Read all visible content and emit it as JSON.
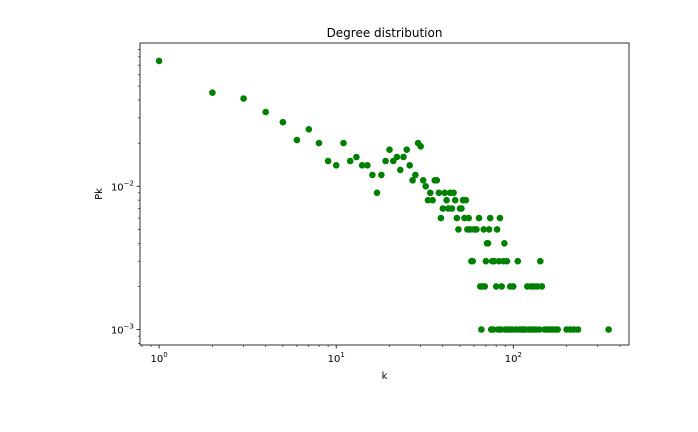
{
  "chart_data": {
    "type": "scatter",
    "title": "Degree distribution",
    "xlabel": "k",
    "ylabel": "Pk",
    "xscale": "log",
    "yscale": "log",
    "xlim": [
      0.78,
      450
    ],
    "ylim": [
      0.00078,
      0.1
    ],
    "grid": false,
    "marker_color": "#008000",
    "x_ticks": [
      {
        "value": 1,
        "base": "10",
        "exp": "0"
      },
      {
        "value": 10,
        "base": "10",
        "exp": "1"
      },
      {
        "value": 100,
        "base": "10",
        "exp": "2"
      }
    ],
    "y_ticks": [
      {
        "value": 0.001,
        "base": "10",
        "exp": "−3"
      },
      {
        "value": 0.01,
        "base": "10",
        "exp": "−2"
      }
    ],
    "points": [
      [
        1,
        0.075
      ],
      [
        2,
        0.045
      ],
      [
        3,
        0.041
      ],
      [
        4,
        0.033
      ],
      [
        5,
        0.028
      ],
      [
        6,
        0.021
      ],
      [
        7,
        0.025
      ],
      [
        8,
        0.02
      ],
      [
        9,
        0.015
      ],
      [
        10,
        0.014
      ],
      [
        11,
        0.02
      ],
      [
        12,
        0.015
      ],
      [
        13,
        0.016
      ],
      [
        14,
        0.014
      ],
      [
        15,
        0.014
      ],
      [
        16,
        0.012
      ],
      [
        17,
        0.009
      ],
      [
        18,
        0.012
      ],
      [
        19,
        0.015
      ],
      [
        20,
        0.018
      ],
      [
        21,
        0.015
      ],
      [
        22,
        0.016
      ],
      [
        23,
        0.013
      ],
      [
        24,
        0.016
      ],
      [
        25,
        0.018
      ],
      [
        26,
        0.014
      ],
      [
        27,
        0.011
      ],
      [
        28,
        0.012
      ],
      [
        29,
        0.02
      ],
      [
        30,
        0.019
      ],
      [
        31,
        0.011
      ],
      [
        32,
        0.01
      ],
      [
        33,
        0.008
      ],
      [
        34,
        0.009
      ],
      [
        35,
        0.008
      ],
      [
        36,
        0.011
      ],
      [
        37,
        0.011
      ],
      [
        38,
        0.009
      ],
      [
        39,
        0.006
      ],
      [
        40,
        0.007
      ],
      [
        41,
        0.009
      ],
      [
        42,
        0.008
      ],
      [
        43,
        0.007
      ],
      [
        44,
        0.009
      ],
      [
        45,
        0.007
      ],
      [
        46,
        0.009
      ],
      [
        47,
        0.008
      ],
      [
        48,
        0.006
      ],
      [
        49,
        0.005
      ],
      [
        50,
        0.007
      ],
      [
        51,
        0.007
      ],
      [
        52,
        0.008
      ],
      [
        53,
        0.006
      ],
      [
        54,
        0.008
      ],
      [
        55,
        0.005
      ],
      [
        56,
        0.006
      ],
      [
        57,
        0.005
      ],
      [
        58,
        0.003
      ],
      [
        59,
        0.003
      ],
      [
        60,
        0.005
      ],
      [
        62,
        0.005
      ],
      [
        64,
        0.006
      ],
      [
        65,
        0.002
      ],
      [
        66,
        0.001
      ],
      [
        67,
        0.002
      ],
      [
        68,
        0.005
      ],
      [
        69,
        0.002
      ],
      [
        70,
        0.003
      ],
      [
        71,
        0.004
      ],
      [
        72,
        0.004
      ],
      [
        73,
        0.005
      ],
      [
        74,
        0.006
      ],
      [
        75,
        0.001
      ],
      [
        76,
        0.003
      ],
      [
        77,
        0.001
      ],
      [
        78,
        0.003
      ],
      [
        80,
        0.002
      ],
      [
        81,
        0.005
      ],
      [
        82,
        0.001
      ],
      [
        83,
        0.003
      ],
      [
        84,
        0.006
      ],
      [
        85,
        0.001
      ],
      [
        86,
        0.002
      ],
      [
        88,
        0.003
      ],
      [
        89,
        0.004
      ],
      [
        90,
        0.001
      ],
      [
        92,
        0.003
      ],
      [
        94,
        0.001
      ],
      [
        96,
        0.002
      ],
      [
        98,
        0.001
      ],
      [
        100,
        0.002
      ],
      [
        103,
        0.001
      ],
      [
        106,
        0.003
      ],
      [
        108,
        0.001
      ],
      [
        111,
        0.001
      ],
      [
        114,
        0.001
      ],
      [
        117,
        0.001
      ],
      [
        120,
        0.002
      ],
      [
        123,
        0.001
      ],
      [
        126,
        0.002
      ],
      [
        128,
        0.001
      ],
      [
        131,
        0.002
      ],
      [
        134,
        0.001
      ],
      [
        137,
        0.002
      ],
      [
        140,
        0.001
      ],
      [
        142,
        0.003
      ],
      [
        145,
        0.002
      ],
      [
        150,
        0.001
      ],
      [
        155,
        0.001
      ],
      [
        160,
        0.001
      ],
      [
        166,
        0.001
      ],
      [
        172,
        0.001
      ],
      [
        178,
        0.001
      ],
      [
        200,
        0.001
      ],
      [
        210,
        0.001
      ],
      [
        220,
        0.001
      ],
      [
        232,
        0.001
      ],
      [
        345,
        0.001
      ]
    ]
  }
}
